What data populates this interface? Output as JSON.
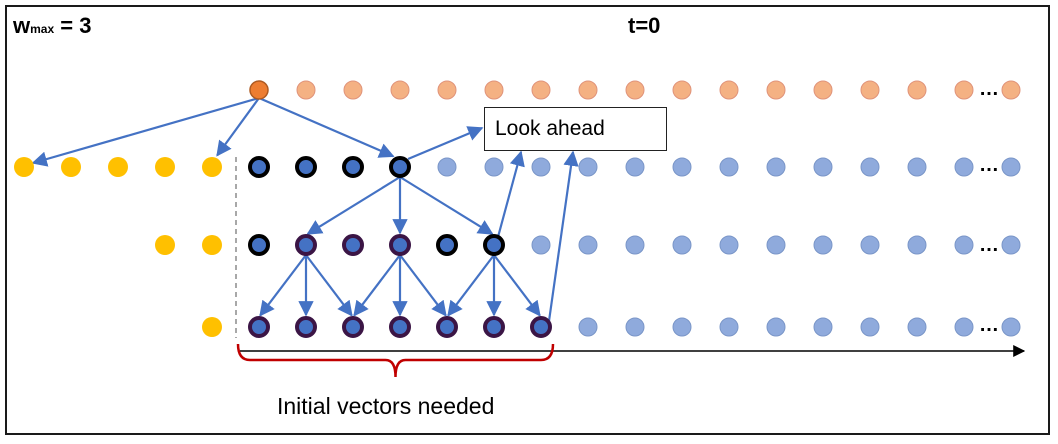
{
  "labels": {
    "wmax_prefix": "w",
    "wmax_sub": "max",
    "wmax_value": " = 3",
    "time": "t=0",
    "look_ahead": "Look ahead",
    "initial_vectors": "Initial vectors needed",
    "ellipsis": "…"
  },
  "colors": {
    "orange_active": "#ed7d31",
    "orange_light": "#f4b183",
    "blue_light": "#8faadc",
    "blue_core": "#4472c4",
    "yellow": "#ffc000",
    "ring_black": "#000000",
    "ring_purple": "#3b1545",
    "arrow_blue": "#4472c4",
    "brace_red": "#c00000"
  },
  "rows": [
    {
      "name": "top",
      "nodes": [
        "active",
        "light",
        "light",
        "light",
        "light",
        "light",
        "light",
        "light",
        "light",
        "light",
        "light",
        "light",
        "light",
        "light",
        "light",
        "light",
        "light"
      ]
    },
    {
      "name": "layer-1",
      "inputs": 5,
      "nodes": [
        "black",
        "black",
        "black",
        "black",
        "plain",
        "plain",
        "plain",
        "plain",
        "plain",
        "plain",
        "plain",
        "plain",
        "plain",
        "plain",
        "plain",
        "plain",
        "plain"
      ]
    },
    {
      "name": "layer-2",
      "inputs": 2,
      "nodes": [
        "black",
        "purple",
        "purple",
        "purple",
        "black",
        "black",
        "plain",
        "plain",
        "plain",
        "plain",
        "plain",
        "plain",
        "plain",
        "plain",
        "plain",
        "plain",
        "plain"
      ]
    },
    {
      "name": "layer-3",
      "inputs": 1,
      "nodes": [
        "purple",
        "purple",
        "purple",
        "purple",
        "purple",
        "purple",
        "purple",
        "plain",
        "plain",
        "plain",
        "plain",
        "plain",
        "plain",
        "plain",
        "plain",
        "plain",
        "plain"
      ]
    }
  ]
}
